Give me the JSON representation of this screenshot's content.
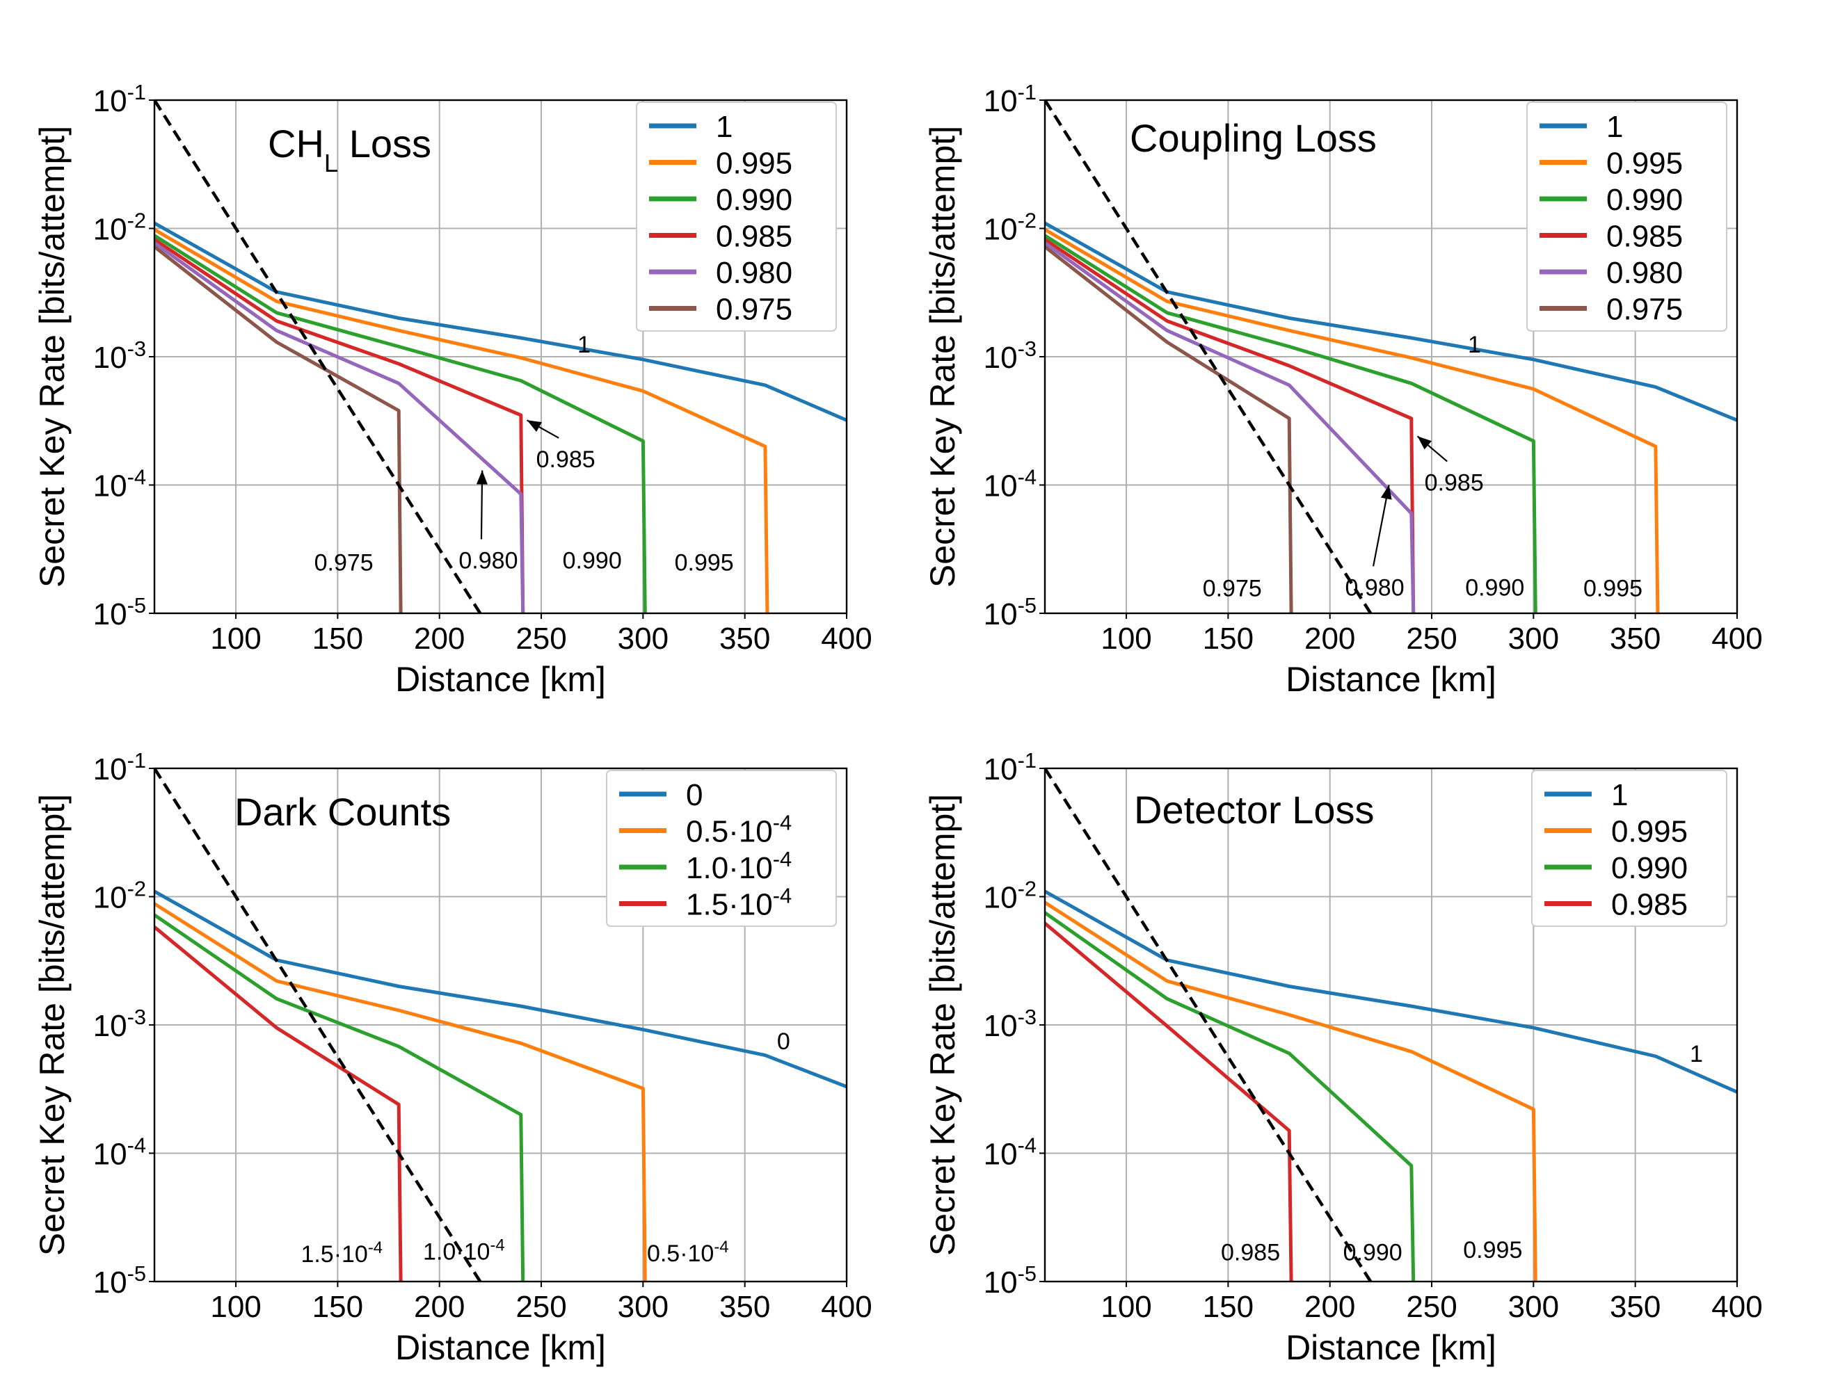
{
  "chart_data": [
    {
      "type": "line",
      "title": "CH",
      "title_sub": "L",
      "title_suffix": " Loss",
      "xlabel": "Distance [km]",
      "ylabel": "Secret Key Rate [bits/attempt]",
      "xlim": [
        60,
        400
      ],
      "ylim": [
        1e-05,
        0.1
      ],
      "yscale": "log",
      "xticks": [
        100,
        150,
        200,
        250,
        300,
        350,
        400
      ],
      "ytick_labels": [
        {
          "base": "10",
          "exp": "-5"
        },
        {
          "base": "10",
          "exp": "-4"
        },
        {
          "base": "10",
          "exp": "-3"
        },
        {
          "base": "10",
          "exp": "-2"
        },
        {
          "base": "10",
          "exp": "-1"
        }
      ],
      "grid": true,
      "legend_location": "top-right",
      "reference_line": {
        "x": [
          60,
          260
        ],
        "y": [
          0.1,
          1e-06
        ],
        "style": "dashed",
        "color": "#000000"
      },
      "series": [
        {
          "name": "1",
          "color": "#1f77b4",
          "x": [
            60,
            120,
            180,
            240,
            300,
            360,
            400
          ],
          "y": [
            0.011,
            0.0032,
            0.002,
            0.0014,
            0.00095,
            0.0006,
            0.00032
          ]
        },
        {
          "name": "0.995",
          "color": "#ff7f0e",
          "x": [
            60,
            120,
            180,
            240,
            300,
            360,
            361
          ],
          "y": [
            0.0098,
            0.0027,
            0.0016,
            0.00098,
            0.00054,
            0.0002,
            1e-05
          ]
        },
        {
          "name": "0.990",
          "color": "#2ca02c",
          "x": [
            60,
            120,
            180,
            240,
            300,
            301
          ],
          "y": [
            0.0088,
            0.0022,
            0.0012,
            0.00065,
            0.00022,
            1e-05
          ]
        },
        {
          "name": "0.985",
          "color": "#d62728",
          "x": [
            60,
            120,
            180,
            240,
            241
          ],
          "y": [
            0.0082,
            0.0019,
            0.00088,
            0.00035,
            1e-05
          ]
        },
        {
          "name": "0.980",
          "color": "#9467bd",
          "x": [
            60,
            120,
            180,
            240,
            241
          ],
          "y": [
            0.0077,
            0.0016,
            0.00062,
            8.5e-05,
            1e-05
          ]
        },
        {
          "name": "0.975",
          "color": "#8c564b",
          "x": [
            60,
            120,
            180,
            181
          ],
          "y": [
            0.0072,
            0.0013,
            0.00038,
            1e-05
          ]
        }
      ],
      "annotations": [
        {
          "text": "1",
          "x": 271,
          "y": 0.00125
        },
        {
          "text": "0.985",
          "x": 262,
          "y": 0.00016,
          "arrow_to": [
            243,
            0.00032
          ]
        },
        {
          "text": "0.975",
          "x": 153,
          "y": 2.5e-05
        },
        {
          "text": "0.980",
          "x": 224,
          "y": 2.6e-05,
          "arrow_to": [
            221,
            0.00013
          ]
        },
        {
          "text": "0.990",
          "x": 275,
          "y": 2.6e-05
        },
        {
          "text": "0.995",
          "x": 330,
          "y": 2.5e-05
        }
      ]
    },
    {
      "type": "line",
      "title": "Coupling Loss",
      "title_sub": "",
      "title_suffix": "",
      "xlabel": "Distance [km]",
      "ylabel": "Secret Key Rate [bits/attempt]",
      "xlim": [
        60,
        400
      ],
      "ylim": [
        1e-05,
        0.1
      ],
      "yscale": "log",
      "xticks": [
        100,
        150,
        200,
        250,
        300,
        350,
        400
      ],
      "ytick_labels": [
        {
          "base": "10",
          "exp": "-5"
        },
        {
          "base": "10",
          "exp": "-4"
        },
        {
          "base": "10",
          "exp": "-3"
        },
        {
          "base": "10",
          "exp": "-2"
        },
        {
          "base": "10",
          "exp": "-1"
        }
      ],
      "grid": true,
      "legend_location": "top-right",
      "reference_line": {
        "x": [
          60,
          260
        ],
        "y": [
          0.1,
          1e-06
        ],
        "style": "dashed",
        "color": "#000000"
      },
      "series": [
        {
          "name": "1",
          "color": "#1f77b4",
          "x": [
            60,
            120,
            180,
            240,
            300,
            360,
            400
          ],
          "y": [
            0.011,
            0.0032,
            0.002,
            0.0014,
            0.00095,
            0.00058,
            0.00032
          ]
        },
        {
          "name": "0.995",
          "color": "#ff7f0e",
          "x": [
            60,
            120,
            180,
            240,
            300,
            360,
            361
          ],
          "y": [
            0.0098,
            0.0027,
            0.0016,
            0.00098,
            0.00056,
            0.0002,
            1e-05
          ]
        },
        {
          "name": "0.990",
          "color": "#2ca02c",
          "x": [
            60,
            120,
            180,
            240,
            300,
            301
          ],
          "y": [
            0.0088,
            0.0022,
            0.0012,
            0.00062,
            0.00022,
            1e-05
          ]
        },
        {
          "name": "0.985",
          "color": "#d62728",
          "x": [
            60,
            120,
            180,
            240,
            241
          ],
          "y": [
            0.0082,
            0.0019,
            0.00085,
            0.00033,
            1e-05
          ]
        },
        {
          "name": "0.980",
          "color": "#9467bd",
          "x": [
            60,
            120,
            180,
            240,
            241
          ],
          "y": [
            0.0077,
            0.0016,
            0.0006,
            6e-05,
            1e-05
          ]
        },
        {
          "name": "0.975",
          "color": "#8c564b",
          "x": [
            60,
            120,
            180,
            181
          ],
          "y": [
            0.0072,
            0.0013,
            0.00033,
            1e-05
          ]
        }
      ],
      "annotations": [
        {
          "text": "1",
          "x": 271,
          "y": 0.00125
        },
        {
          "text": "0.985",
          "x": 261,
          "y": 0.000105,
          "arrow_to": [
            243,
            0.00024
          ]
        },
        {
          "text": "0.975",
          "x": 152,
          "y": 1.58e-05
        },
        {
          "text": "0.980",
          "x": 222,
          "y": 1.6e-05,
          "arrow_to": [
            229,
            0.0001
          ]
        },
        {
          "text": "0.990",
          "x": 281,
          "y": 1.6e-05
        },
        {
          "text": "0.995",
          "x": 339,
          "y": 1.58e-05
        }
      ]
    },
    {
      "type": "line",
      "title": "Dark Counts",
      "title_sub": "",
      "title_suffix": "",
      "xlabel": "Distance [km]",
      "ylabel": "Secret Key Rate [bits/attempt]",
      "xlim": [
        60,
        400
      ],
      "ylim": [
        1e-05,
        0.1
      ],
      "yscale": "log",
      "xticks": [
        100,
        150,
        200,
        250,
        300,
        350,
        400
      ],
      "ytick_labels": [
        {
          "base": "10",
          "exp": "-5"
        },
        {
          "base": "10",
          "exp": "-4"
        },
        {
          "base": "10",
          "exp": "-3"
        },
        {
          "base": "10",
          "exp": "-2"
        },
        {
          "base": "10",
          "exp": "-1"
        }
      ],
      "grid": true,
      "legend_location": "top-right",
      "reference_line": {
        "x": [
          60,
          260
        ],
        "y": [
          0.1,
          1e-06
        ],
        "style": "dashed",
        "color": "#000000"
      },
      "series": [
        {
          "name": "0",
          "name_base": "0",
          "name_exp": "",
          "color": "#1f77b4",
          "x": [
            60,
            120,
            180,
            240,
            300,
            360,
            400
          ],
          "y": [
            0.011,
            0.0032,
            0.002,
            0.0014,
            0.00092,
            0.00058,
            0.00033
          ]
        },
        {
          "name": "0.5·10^-4",
          "name_base": "0.5·10",
          "name_exp": "-4",
          "color": "#ff7f0e",
          "x": [
            60,
            120,
            180,
            240,
            300,
            301
          ],
          "y": [
            0.0088,
            0.0022,
            0.0013,
            0.00072,
            0.00032,
            1e-05
          ]
        },
        {
          "name": "1.0·10^-4",
          "name_base": "1.0·10",
          "name_exp": "-4",
          "color": "#2ca02c",
          "x": [
            60,
            120,
            180,
            240,
            241
          ],
          "y": [
            0.0072,
            0.0016,
            0.00068,
            0.0002,
            1e-05
          ]
        },
        {
          "name": "1.5·10^-4",
          "name_base": "1.5·10",
          "name_exp": "-4",
          "color": "#d62728",
          "x": [
            60,
            120,
            180,
            181
          ],
          "y": [
            0.0058,
            0.00095,
            0.00024,
            1e-05
          ]
        }
      ],
      "annotations": [
        {
          "text": "0",
          "text_base": "0",
          "text_exp": "",
          "x": 369,
          "y": 0.00075
        },
        {
          "text": "1.5·10^-4",
          "text_base": "1.5·10",
          "text_exp": "-4",
          "x": 152,
          "y": 1.65e-05
        },
        {
          "text": "1.0·10^-4",
          "text_base": "1.0·10",
          "text_exp": "-4",
          "x": 212,
          "y": 1.72e-05
        },
        {
          "text": "0.5·10^-4",
          "text_base": "0.5·10",
          "text_exp": "-4",
          "x": 322,
          "y": 1.67e-05
        }
      ]
    },
    {
      "type": "line",
      "title": "Detector Loss",
      "title_sub": "",
      "title_suffix": "",
      "xlabel": "Distance [km]",
      "ylabel": "Secret Key Rate [bits/attempt]",
      "xlim": [
        60,
        400
      ],
      "ylim": [
        1e-05,
        0.1
      ],
      "yscale": "log",
      "xticks": [
        100,
        150,
        200,
        250,
        300,
        350,
        400
      ],
      "ytick_labels": [
        {
          "base": "10",
          "exp": "-5"
        },
        {
          "base": "10",
          "exp": "-4"
        },
        {
          "base": "10",
          "exp": "-3"
        },
        {
          "base": "10",
          "exp": "-2"
        },
        {
          "base": "10",
          "exp": "-1"
        }
      ],
      "grid": true,
      "legend_location": "top-right",
      "reference_line": {
        "x": [
          60,
          260
        ],
        "y": [
          0.1,
          1e-06
        ],
        "style": "dashed",
        "color": "#000000"
      },
      "series": [
        {
          "name": "1",
          "color": "#1f77b4",
          "x": [
            60,
            120,
            180,
            240,
            300,
            360,
            400
          ],
          "y": [
            0.011,
            0.0032,
            0.002,
            0.0014,
            0.00095,
            0.00057,
            0.0003
          ]
        },
        {
          "name": "0.995",
          "color": "#ff7f0e",
          "x": [
            60,
            120,
            180,
            240,
            300,
            301
          ],
          "y": [
            0.009,
            0.0022,
            0.0012,
            0.00062,
            0.00022,
            1e-05
          ]
        },
        {
          "name": "0.990",
          "color": "#2ca02c",
          "x": [
            60,
            120,
            180,
            240,
            241
          ],
          "y": [
            0.0075,
            0.0016,
            0.0006,
            8e-05,
            1e-05
          ]
        },
        {
          "name": "0.985",
          "color": "#d62728",
          "x": [
            60,
            120,
            180,
            181
          ],
          "y": [
            0.0062,
            0.00098,
            0.00015,
            1e-05
          ]
        }
      ],
      "annotations": [
        {
          "text": "1",
          "x": 380,
          "y": 0.0006
        },
        {
          "text": "0.985",
          "x": 161,
          "y": 1.7e-05
        },
        {
          "text": "0.990",
          "x": 221,
          "y": 1.7e-05
        },
        {
          "text": "0.995",
          "x": 280,
          "y": 1.77e-05
        }
      ]
    }
  ]
}
